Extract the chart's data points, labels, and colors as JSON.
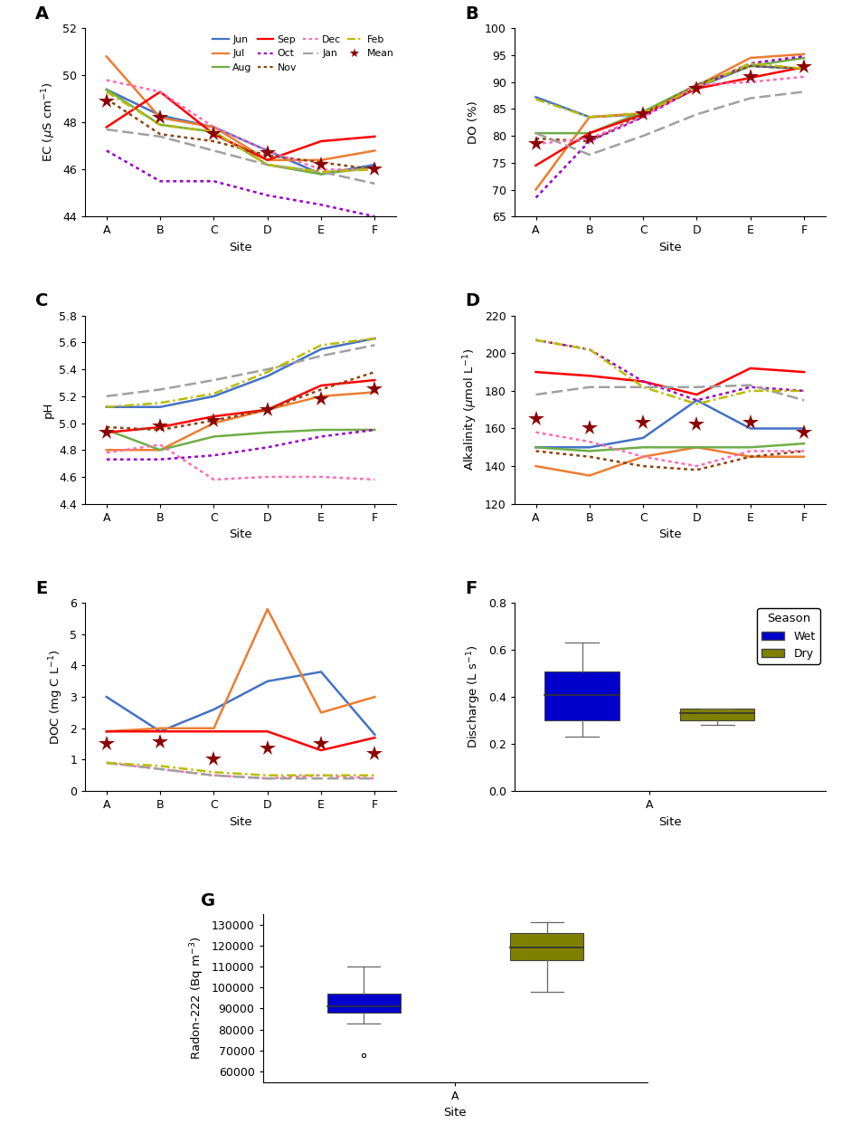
{
  "sites": [
    "A",
    "B",
    "C",
    "D",
    "E",
    "F"
  ],
  "site_x": [
    0,
    1,
    2,
    3,
    4,
    5
  ],
  "EC": {
    "Jun": [
      49.4,
      48.3,
      47.8,
      46.8,
      45.8,
      46.2
    ],
    "Jul": [
      50.8,
      48.2,
      47.8,
      46.4,
      46.4,
      46.8
    ],
    "Aug": [
      49.4,
      47.9,
      47.6,
      46.2,
      45.8,
      46.1
    ],
    "Sep": [
      47.8,
      49.3,
      47.5,
      46.4,
      47.2,
      47.4
    ],
    "Oct": [
      46.8,
      45.5,
      45.5,
      44.9,
      44.5,
      44.0
    ],
    "Nov": [
      49.0,
      47.5,
      47.2,
      46.6,
      46.3,
      46.0
    ],
    "Dec": [
      49.8,
      49.3,
      47.8,
      46.8,
      46.0,
      46.0
    ],
    "Jan": [
      47.7,
      47.4,
      46.8,
      46.2,
      45.9,
      45.4
    ],
    "Feb": [
      49.3,
      47.9,
      47.6,
      46.2,
      45.9,
      46.0
    ],
    "Mean": [
      48.9,
      48.2,
      47.5,
      46.7,
      46.2,
      46.0
    ]
  },
  "EC_ylim": [
    44,
    52
  ],
  "EC_yticks": [
    44,
    46,
    48,
    50,
    52
  ],
  "DO": {
    "Jun": [
      87.2,
      83.5,
      84.0,
      89.0,
      93.0,
      92.5
    ],
    "Jul": [
      70.0,
      83.5,
      84.2,
      89.3,
      94.5,
      95.2
    ],
    "Aug": [
      80.5,
      80.5,
      84.5,
      89.5,
      93.0,
      94.5
    ],
    "Sep": [
      74.5,
      80.5,
      84.0,
      88.8,
      90.8,
      92.8
    ],
    "Oct": [
      68.5,
      79.0,
      83.5,
      89.0,
      93.5,
      94.8
    ],
    "Nov": [
      79.5,
      79.0,
      84.0,
      89.5,
      93.0,
      92.5
    ],
    "Dec": [
      78.5,
      79.5,
      83.5,
      89.5,
      90.0,
      91.0
    ],
    "Jan": [
      80.5,
      76.5,
      80.0,
      84.0,
      87.0,
      88.2
    ],
    "Feb": [
      86.8,
      83.5,
      84.2,
      89.0,
      93.5,
      92.5
    ],
    "Mean": [
      78.5,
      79.5,
      84.0,
      88.8,
      91.0,
      92.8
    ]
  },
  "DO_ylim": [
    65,
    100
  ],
  "DO_yticks": [
    65,
    70,
    75,
    80,
    85,
    90,
    95,
    100
  ],
  "pH": {
    "Jun": [
      5.12,
      5.12,
      5.2,
      5.35,
      5.55,
      5.63
    ],
    "Jul": [
      4.8,
      4.8,
      5.0,
      5.1,
      5.2,
      5.23
    ],
    "Aug": [
      4.95,
      4.8,
      4.9,
      4.93,
      4.95,
      4.95
    ],
    "Sep": [
      4.93,
      4.97,
      5.05,
      5.1,
      5.28,
      5.32
    ],
    "Oct": [
      4.73,
      4.73,
      4.76,
      4.82,
      4.9,
      4.95
    ],
    "Nov": [
      4.97,
      4.95,
      5.02,
      5.1,
      5.25,
      5.38
    ],
    "Dec": [
      4.78,
      4.84,
      4.58,
      4.6,
      4.6,
      4.58
    ],
    "Jan": [
      5.2,
      5.25,
      5.32,
      5.4,
      5.5,
      5.58
    ],
    "Feb": [
      5.12,
      5.15,
      5.22,
      5.38,
      5.58,
      5.63
    ],
    "Mean": [
      4.93,
      4.98,
      5.02,
      5.1,
      5.18,
      5.25
    ]
  },
  "pH_ylim": [
    4.4,
    5.8
  ],
  "pH_yticks": [
    4.4,
    4.6,
    4.8,
    5.0,
    5.2,
    5.4,
    5.6,
    5.8
  ],
  "Alk": {
    "Jun": [
      150,
      150,
      155,
      175,
      160,
      160
    ],
    "Jul": [
      140,
      135,
      145,
      150,
      145,
      145
    ],
    "Aug": [
      150,
      148,
      150,
      150,
      150,
      152
    ],
    "Sep": [
      190,
      188,
      185,
      178,
      192,
      190
    ],
    "Oct": [
      207,
      202,
      185,
      175,
      182,
      180
    ],
    "Nov": [
      148,
      145,
      140,
      138,
      145,
      148
    ],
    "Dec": [
      158,
      153,
      145,
      140,
      148,
      148
    ],
    "Jan": [
      178,
      182,
      182,
      182,
      183,
      175
    ],
    "Feb": [
      207,
      202,
      182,
      173,
      180,
      180
    ],
    "Mean": [
      165,
      160,
      163,
      162,
      163,
      158
    ]
  },
  "Alk_ylim": [
    120,
    220
  ],
  "Alk_yticks": [
    120,
    140,
    160,
    180,
    200,
    220
  ],
  "DOC": {
    "Jun": [
      3.0,
      1.9,
      2.6,
      3.5,
      3.8,
      1.8
    ],
    "Jul": [
      1.9,
      2.0,
      2.0,
      5.8,
      2.5,
      3.0
    ],
    "Aug": [
      null,
      null,
      null,
      null,
      null,
      null
    ],
    "Sep": [
      1.9,
      1.9,
      1.9,
      1.9,
      1.3,
      1.7
    ],
    "Oct": [
      null,
      null,
      null,
      null,
      null,
      null
    ],
    "Nov": [
      null,
      null,
      null,
      null,
      null,
      null
    ],
    "Dec": [
      0.9,
      0.7,
      0.5,
      0.4,
      0.5,
      0.4
    ],
    "Jan": [
      0.9,
      0.7,
      0.5,
      0.4,
      0.4,
      0.4
    ],
    "Feb": [
      0.9,
      0.8,
      0.6,
      0.5,
      0.5,
      0.5
    ],
    "Mean": [
      1.5,
      1.55,
      1.0,
      1.35,
      1.5,
      1.2
    ]
  },
  "DOC_ylim": [
    0,
    6
  ],
  "DOC_yticks": [
    0,
    1,
    2,
    3,
    4,
    5,
    6
  ],
  "discharge_wet": {
    "q1": 0.3,
    "median": 0.41,
    "q3": 0.51,
    "whisker_low": 0.23,
    "whisker_high": 0.63
  },
  "discharge_dry": {
    "q1": 0.3,
    "median": 0.33,
    "q3": 0.35,
    "whisker_low": 0.28,
    "whisker_high": 0.35
  },
  "discharge_ylim": [
    0.0,
    0.8
  ],
  "discharge_yticks": [
    0.0,
    0.2,
    0.4,
    0.6,
    0.8
  ],
  "radon_wet": {
    "q1": 88000,
    "median": 91000,
    "q3": 97000,
    "whisker_low": 83000,
    "whisker_high": 110000,
    "outlier": 68000
  },
  "radon_dry": {
    "q1": 113000,
    "median": 119000,
    "q3": 126000,
    "whisker_low": 98000,
    "whisker_high": 131000
  },
  "radon_ylim": [
    55000,
    135000
  ],
  "radon_yticks": [
    60000,
    70000,
    80000,
    90000,
    100000,
    110000,
    120000,
    130000
  ],
  "colors": {
    "Jun": "#4472C4",
    "Jul": "#ED7D31",
    "Aug": "#70AD47",
    "Sep": "#FF0000",
    "Oct": "#9900CC",
    "Nov": "#8B4513",
    "Dec": "#FF69B4",
    "Jan": "#A0A0A0",
    "Feb": "#BBBB00",
    "Mean": "#8B0000"
  },
  "linestyles": {
    "Jun": "solid",
    "Jul": "solid",
    "Aug": "solid",
    "Sep": "solid",
    "Oct": "dotted",
    "Nov": "dotted",
    "Dec": "dotted",
    "Jan": "dashed",
    "Feb": "dashdot",
    "Mean": "none"
  },
  "wet_color": "#0000CC",
  "dry_color": "#808000"
}
